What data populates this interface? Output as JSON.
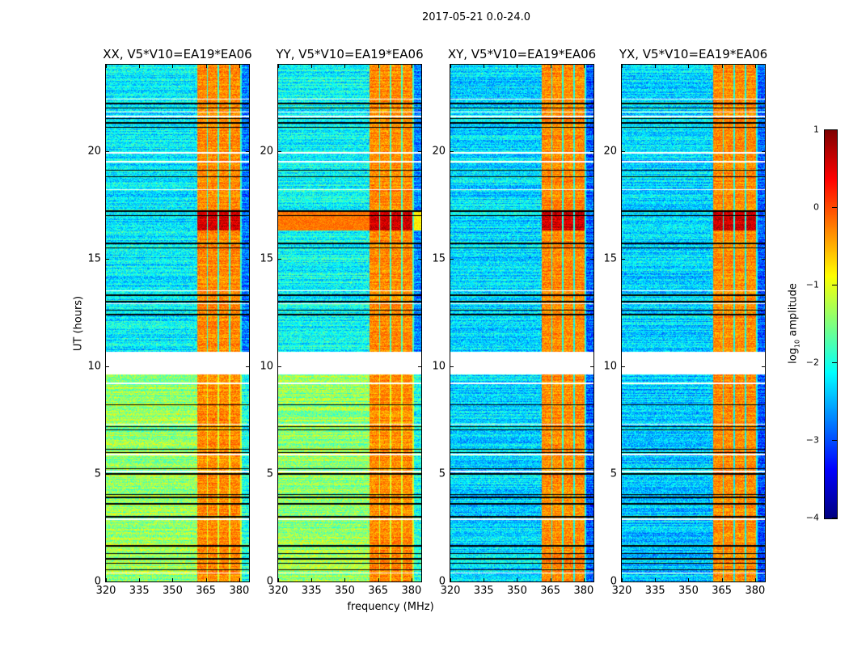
{
  "chart_data": {
    "type": "heatmap",
    "title": "2017-05-21 0.0-24.0",
    "xlabel": "frequency (MHz)",
    "ylabel": "UT (hours)",
    "xlim": [
      320,
      384.4
    ],
    "ylim": [
      0,
      24
    ],
    "xticks": [
      "320",
      "335",
      "350",
      "365",
      "380"
    ],
    "xtick_values": [
      320,
      335,
      350,
      365,
      380
    ],
    "yticks": [
      "0",
      "5",
      "10",
      "15",
      "20"
    ],
    "ytick_values": [
      0,
      5,
      10,
      15,
      20
    ],
    "panels": [
      {
        "title": "XX, V5*V10=EA19*EA06",
        "base_early": -1.4,
        "base_late": -2.2
      },
      {
        "title": "YY, V5*V10=EA19*EA06",
        "base_early": -1.4,
        "base_late": -2.1
      },
      {
        "title": "XY, V5*V10=EA19*EA06",
        "base_early": -2.3,
        "base_late": -2.3
      },
      {
        "title": "YX, V5*V10=EA19*EA06",
        "base_early": -2.4,
        "base_late": -2.3
      }
    ],
    "rfi_band_mhz": [
      361,
      381
    ],
    "rfi_band_level": -0.3,
    "rfi_burst_hours": [
      16.3,
      17.2
    ],
    "rfi_burst_level": 0.6,
    "flagged_hours": [
      [
        9.6,
        10.65
      ]
    ],
    "flag_lines_hours": [
      0.4,
      2.9,
      5.1,
      5.9,
      7.3,
      9.2,
      12.9,
      13.5,
      18.2,
      19.5,
      19.9,
      21.6,
      21.8,
      22.4
    ],
    "black_lines_hours": [
      0.55,
      0.85,
      1.05,
      1.3,
      1.65,
      3.0,
      3.6,
      3.9,
      4.05,
      5.0,
      5.25,
      6.0,
      6.15,
      7.05,
      7.2,
      8.2,
      12.4,
      12.6,
      13.0,
      13.3,
      15.5,
      15.7,
      17.0,
      17.2,
      18.8,
      19.1,
      21.1,
      21.3,
      21.5,
      22.0,
      22.2
    ],
    "colorbar": {
      "label_prefix": "log",
      "label_sub": "10",
      "label_suffix": " amplitude",
      "range": [
        -4,
        1
      ],
      "ticks": [
        "1",
        "0",
        "−1",
        "−2",
        "−3",
        "−4"
      ],
      "tick_values": [
        1,
        0,
        -1,
        -2,
        -3,
        -4
      ],
      "colormap": "jet"
    }
  }
}
